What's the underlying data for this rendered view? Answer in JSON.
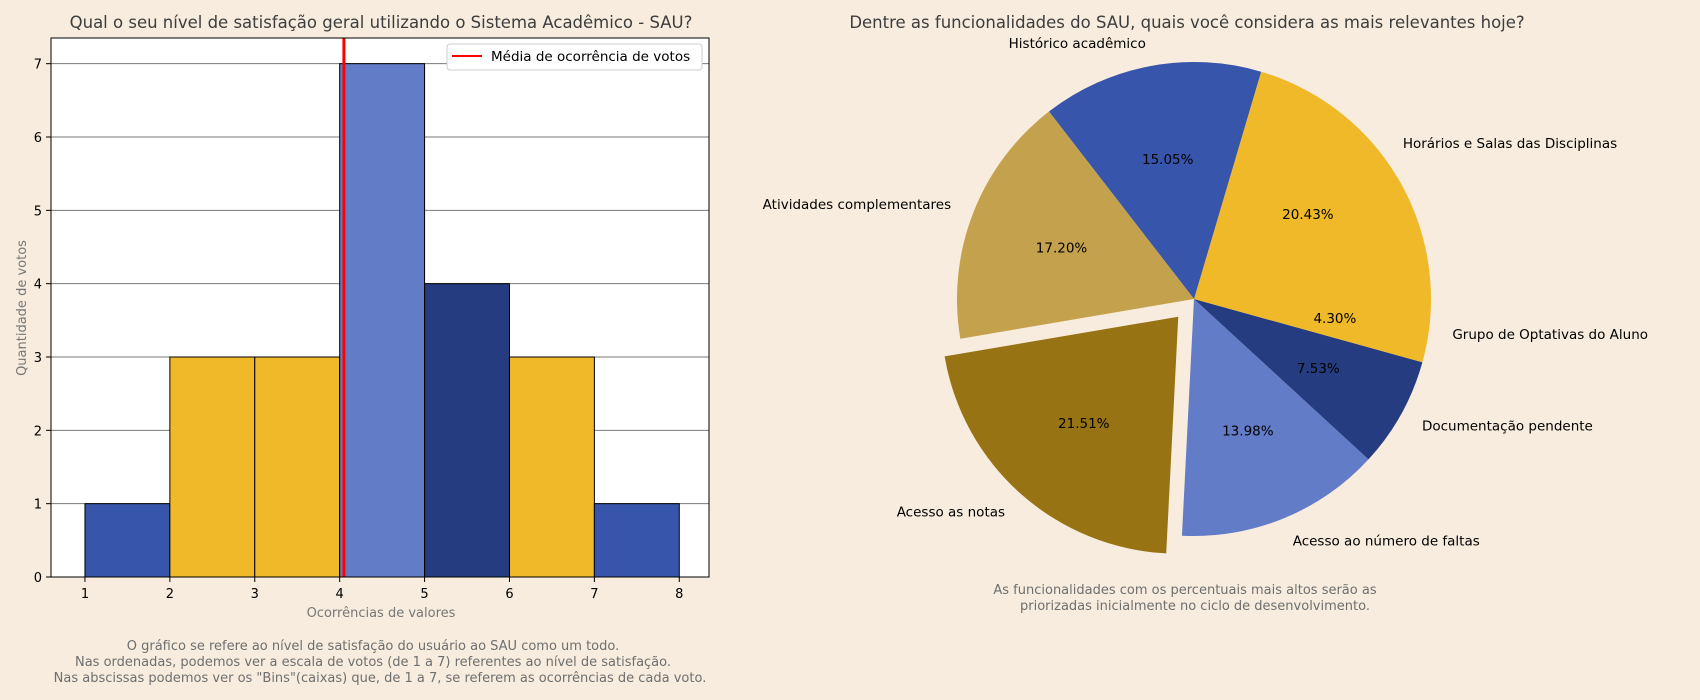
{
  "chart_data": [
    {
      "type": "bar",
      "title": "Qual o seu nível de satisfação geral utilizando o Sistema Acadêmico - SAU?",
      "xlabel": "Ocorrências de valores",
      "ylabel": "Quantidade de votos",
      "xlim": [
        0.6,
        8.35
      ],
      "ylim": [
        0,
        7.35
      ],
      "xticks": [
        "1",
        "2",
        "3",
        "4",
        "5",
        "6",
        "7",
        "8"
      ],
      "yticks": [
        "0",
        "1",
        "2",
        "3",
        "4",
        "5",
        "6",
        "7"
      ],
      "grid": "horizontal",
      "bins": [
        {
          "start": 1,
          "end": 2,
          "value": 1,
          "color": "#3755ab"
        },
        {
          "start": 2,
          "end": 3,
          "value": 3,
          "color": "#f0b929"
        },
        {
          "start": 3,
          "end": 4,
          "value": 3,
          "color": "#f0b929"
        },
        {
          "start": 4,
          "end": 5,
          "value": 7,
          "color": "#637cc7"
        },
        {
          "start": 5,
          "end": 6,
          "value": 4,
          "color": "#253d80"
        },
        {
          "start": 6,
          "end": 7,
          "value": 3,
          "color": "#f0b929"
        },
        {
          "start": 7,
          "end": 8,
          "value": 1,
          "color": "#3755ab"
        }
      ],
      "mean_line": {
        "x": 4.05,
        "color": "#ff0000",
        "label": "Média de ocorrência de votos"
      },
      "legend": "top-right",
      "caption": [
        "O gráfico se refere ao nível de satisfação do usuário ao SAU como um todo.",
        "Nas ordenadas, podemos ver a escala de votos (de 1 a 7) referentes ao nível de satisfação.",
        "Nas abscissas podemos ver os \"Bins\"(caixas) que, de 1 a 7, se referem as ocorrências de cada voto."
      ]
    },
    {
      "type": "pie",
      "title": "Dentre as funcionalidades do SAU, quais você considera as mais relevantes hoje?",
      "slices": [
        {
          "label": "Horários e Salas das Disciplinas",
          "value": 20.43,
          "pct_label": "20.43%",
          "color": "#f0b929",
          "explode": 0
        },
        {
          "label": "Histórico acadêmico",
          "value": 15.05,
          "pct_label": "15.05%",
          "color": "#3755ab",
          "explode": 0
        },
        {
          "label": "Atividades complementares",
          "value": 17.2,
          "pct_label": "17.20%",
          "color": "#c4a24d",
          "explode": 0
        },
        {
          "label": "Acesso as notas",
          "value": 21.51,
          "pct_label": "21.51%",
          "color": "#977314",
          "explode": 0.1
        },
        {
          "label": "Acesso ao número de faltas",
          "value": 13.98,
          "pct_label": "13.98%",
          "color": "#637cc7",
          "explode": 0
        },
        {
          "label": "Documentação pendente",
          "value": 7.53,
          "pct_label": "7.53%",
          "color": "#253d80",
          "explode": 0
        },
        {
          "label": "Grupo de Optativas do Aluno",
          "value": 4.3,
          "pct_label": "4.30%",
          "color": "#f0b929",
          "explode": 0
        }
      ],
      "start_angle_deg": 0,
      "direction": "counterclockwise",
      "caption": [
        "As funcionalidades com os percentuais mais altos serão as",
        "priorizadas inicialmente no ciclo de desenvolvimento."
      ]
    }
  ]
}
